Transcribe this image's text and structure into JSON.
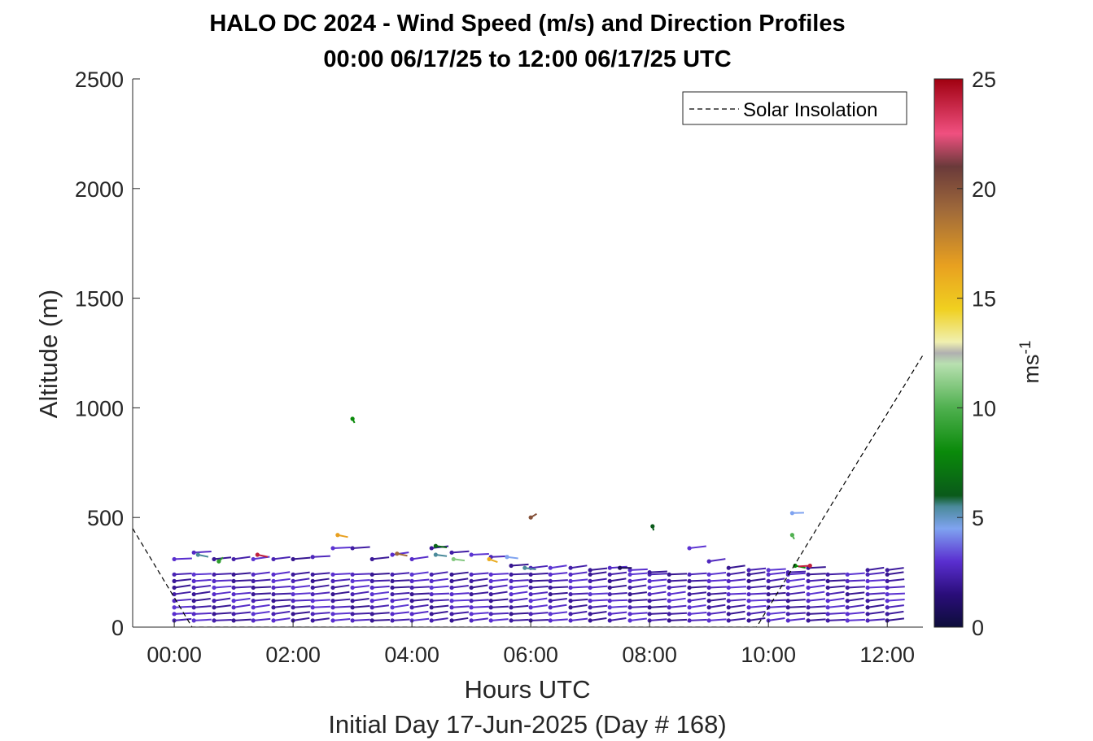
{
  "chart_data": {
    "type": "wind-barb profile",
    "title": "HALO DC 2024 - Wind Speed (m/s) and Direction Profiles",
    "subtitle": "00:00 06/17/25 to 12:00 06/17/25  UTC",
    "xlabel": "Hours UTC",
    "xlabel2": "Initial Day 17-Jun-2025 (Day # 168)",
    "ylabel": "Altitude (m)",
    "xlim": [
      -0.7,
      12.6
    ],
    "ylim": [
      0,
      2500
    ],
    "x_ticks": [
      {
        "value": 0,
        "label": "00:00"
      },
      {
        "value": 2,
        "label": "02:00"
      },
      {
        "value": 4,
        "label": "04:00"
      },
      {
        "value": 6,
        "label": "06:00"
      },
      {
        "value": 8,
        "label": "08:00"
      },
      {
        "value": 10,
        "label": "10:00"
      },
      {
        "value": 12,
        "label": "12:00"
      }
    ],
    "y_ticks": [
      {
        "value": 0,
        "label": "0"
      },
      {
        "value": 500,
        "label": "500"
      },
      {
        "value": 1000,
        "label": "1000"
      },
      {
        "value": 1500,
        "label": "1500"
      },
      {
        "value": 2000,
        "label": "2000"
      },
      {
        "value": 2500,
        "label": "2500"
      }
    ],
    "colorbar": {
      "label": "ms",
      "label_exponent": "-1",
      "range": [
        0,
        25
      ],
      "ticks": [
        {
          "value": 0,
          "label": "0"
        },
        {
          "value": 5,
          "label": "5"
        },
        {
          "value": 10,
          "label": "10"
        },
        {
          "value": 15,
          "label": "15"
        },
        {
          "value": 20,
          "label": "20"
        },
        {
          "value": 25,
          "label": "25"
        }
      ],
      "stops": [
        {
          "v": 0,
          "c": "#0d0d3a"
        },
        {
          "v": 1.5,
          "c": "#2a0d7a"
        },
        {
          "v": 3,
          "c": "#5a2fd0"
        },
        {
          "v": 4.5,
          "c": "#7fa3f0"
        },
        {
          "v": 5.5,
          "c": "#4a8a9a"
        },
        {
          "v": 6,
          "c": "#0a5a1a"
        },
        {
          "v": 8,
          "c": "#0a8a0a"
        },
        {
          "v": 10,
          "c": "#4fb04f"
        },
        {
          "v": 12,
          "c": "#b8e0b0"
        },
        {
          "v": 12.5,
          "c": "#b0b0b0"
        },
        {
          "v": 13,
          "c": "#f0f0b0"
        },
        {
          "v": 14.5,
          "c": "#f0d020"
        },
        {
          "v": 16.5,
          "c": "#e8a020"
        },
        {
          "v": 19,
          "c": "#a06a3a"
        },
        {
          "v": 21,
          "c": "#6a3a3a"
        },
        {
          "v": 22.5,
          "c": "#f05080"
        },
        {
          "v": 25,
          "c": "#a00010"
        }
      ]
    },
    "legend": {
      "entries": [
        "Solar Insolation"
      ],
      "placement": "top-right"
    },
    "solar_insolation": {
      "x": [
        -0.7,
        0.3,
        9.8,
        12.6
      ],
      "y": [
        450,
        0,
        0,
        1240
      ]
    },
    "profile_times": [
      0,
      0.33,
      0.67,
      1.0,
      1.33,
      1.67,
      2.0,
      2.33,
      2.67,
      3.0,
      3.33,
      3.67,
      4.0,
      4.33,
      4.67,
      5.0,
      5.33,
      5.67,
      6.0,
      6.33,
      6.67,
      7.0,
      7.33,
      7.67,
      8.0,
      8.33,
      8.67,
      9.0,
      9.33,
      9.67,
      10.0,
      10.33,
      10.67,
      11.0,
      11.33,
      11.67,
      12.0
    ],
    "profile_tops": [
      310,
      340,
      310,
      310,
      310,
      310,
      310,
      320,
      360,
      360,
      310,
      330,
      310,
      360,
      340,
      330,
      320,
      280,
      270,
      270,
      270,
      260,
      270,
      260,
      250,
      240,
      360,
      300,
      270,
      260,
      260,
      250,
      270,
      240,
      240,
      260,
      260
    ],
    "barb_altitudes": [
      30,
      60,
      90,
      120,
      150,
      180,
      210,
      240
    ],
    "barb_length_hours": 0.3,
    "barb_dir_deg": 255,
    "barb_speed_ms": 2.5,
    "outliers": [
      {
        "x": 3.0,
        "y": 950,
        "speed": 8,
        "dir_deg": 350
      },
      {
        "x": 2.75,
        "y": 420,
        "speed": 16.5,
        "dir_deg": 300
      },
      {
        "x": 6.0,
        "y": 500,
        "speed": 20,
        "dir_deg": 210
      },
      {
        "x": 8.05,
        "y": 460,
        "speed": 6,
        "dir_deg": 355
      },
      {
        "x": 10.4,
        "y": 520,
        "speed": 4.5,
        "dir_deg": 265
      },
      {
        "x": 10.4,
        "y": 420,
        "speed": 10,
        "dir_deg": 350
      },
      {
        "x": 10.45,
        "y": 280,
        "speed": 8,
        "dir_deg": 300
      },
      {
        "x": 10.7,
        "y": 280,
        "speed": 24,
        "dir_deg": 80
      },
      {
        "x": 1.4,
        "y": 330,
        "speed": 24,
        "dir_deg": 300
      },
      {
        "x": 0.75,
        "y": 300,
        "speed": 9,
        "dir_deg": 200
      },
      {
        "x": 0.4,
        "y": 330,
        "speed": 5.5,
        "dir_deg": 300
      },
      {
        "x": 3.75,
        "y": 335,
        "speed": 19,
        "dir_deg": 300
      },
      {
        "x": 4.4,
        "y": 370,
        "speed": 6.5,
        "dir_deg": 290
      },
      {
        "x": 4.4,
        "y": 330,
        "speed": 5.5,
        "dir_deg": 290
      },
      {
        "x": 4.7,
        "y": 310,
        "speed": 11,
        "dir_deg": 290
      },
      {
        "x": 5.3,
        "y": 310,
        "speed": 16,
        "dir_deg": 315
      },
      {
        "x": 5.6,
        "y": 320,
        "speed": 4.5,
        "dir_deg": 290
      },
      {
        "x": 7.5,
        "y": 270,
        "speed": 0.8,
        "dir_deg": 270
      },
      {
        "x": 5.9,
        "y": 270,
        "speed": 5.5,
        "dir_deg": 290
      }
    ]
  }
}
